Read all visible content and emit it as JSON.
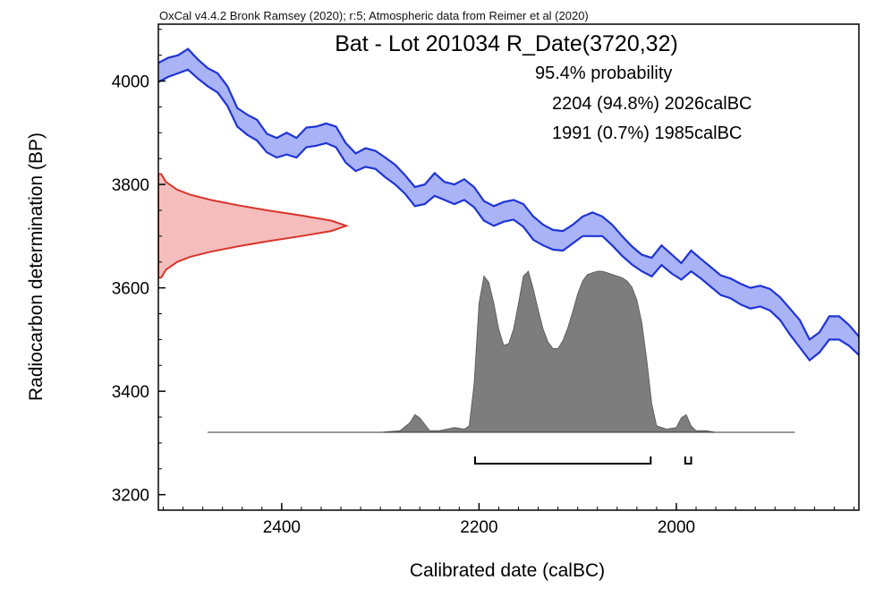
{
  "chart_data": {
    "type": "area",
    "header": "OxCal v4.4.2 Bronk Ramsey (2020); r:5; Atmospheric data from Reimer et al (2020)",
    "title": "Bat - Lot 201034 R_Date(3720,32)",
    "probability_label": "95.4% probability",
    "ranges": [
      {
        "text": "2204 (94.8%) 2026calBC",
        "from": 2204,
        "to": 2026
      },
      {
        "text": "1991 (0.7%) 1985calBC",
        "from": 1991,
        "to": 1985
      }
    ],
    "xlabel": "Calibrated date (calBC)",
    "ylabel": "Radiocarbon determination (BP)",
    "xlim": [
      2525,
      1815
    ],
    "ylim": [
      3170,
      4110
    ],
    "x_ticks": [
      2400,
      2200,
      2000
    ],
    "y_ticks": [
      3200,
      3400,
      3600,
      3800,
      4000
    ],
    "colors": {
      "curve_fill": "#a9b3f5",
      "curve_line": "#1f34d6",
      "radiocarbon_fill": "#f6bdbd",
      "radiocarbon_line": "#d9342a",
      "posterior_fill": "#7d7d7d"
    },
    "calibration_curve": {
      "x": [
        2525,
        2515,
        2505,
        2495,
        2485,
        2475,
        2465,
        2455,
        2445,
        2435,
        2425,
        2415,
        2405,
        2395,
        2385,
        2375,
        2365,
        2355,
        2345,
        2335,
        2325,
        2315,
        2305,
        2295,
        2285,
        2275,
        2265,
        2255,
        2245,
        2235,
        2225,
        2215,
        2205,
        2195,
        2185,
        2175,
        2165,
        2155,
        2145,
        2135,
        2125,
        2115,
        2105,
        2095,
        2085,
        2075,
        2065,
        2055,
        2045,
        2035,
        2025,
        2015,
        2005,
        1995,
        1985,
        1975,
        1965,
        1955,
        1945,
        1935,
        1925,
        1915,
        1905,
        1895,
        1885,
        1875,
        1865,
        1855,
        1845,
        1835,
        1825,
        1815
      ],
      "upper": [
        4035,
        4045,
        4050,
        4062,
        4042,
        4025,
        4015,
        3990,
        3948,
        3935,
        3925,
        3898,
        3890,
        3900,
        3890,
        3910,
        3912,
        3918,
        3912,
        3880,
        3860,
        3870,
        3865,
        3852,
        3838,
        3818,
        3795,
        3800,
        3822,
        3805,
        3800,
        3810,
        3795,
        3768,
        3758,
        3766,
        3770,
        3762,
        3738,
        3722,
        3712,
        3710,
        3722,
        3738,
        3746,
        3738,
        3722,
        3700,
        3680,
        3664,
        3658,
        3682,
        3665,
        3648,
        3672,
        3656,
        3640,
        3624,
        3618,
        3608,
        3600,
        3604,
        3598,
        3582,
        3560,
        3538,
        3500,
        3514,
        3545,
        3545,
        3528,
        3506
      ],
      "lower": [
        3998,
        4008,
        4015,
        4022,
        4005,
        3990,
        3978,
        3952,
        3912,
        3896,
        3885,
        3862,
        3852,
        3858,
        3852,
        3872,
        3875,
        3880,
        3872,
        3842,
        3826,
        3834,
        3830,
        3814,
        3800,
        3782,
        3758,
        3762,
        3778,
        3770,
        3762,
        3770,
        3756,
        3730,
        3720,
        3728,
        3732,
        3718,
        3693,
        3682,
        3674,
        3672,
        3686,
        3700,
        3700,
        3700,
        3682,
        3662,
        3645,
        3632,
        3622,
        3644,
        3628,
        3616,
        3632,
        3618,
        3602,
        3586,
        3580,
        3568,
        3560,
        3564,
        3556,
        3538,
        3510,
        3485,
        3460,
        3475,
        3500,
        3500,
        3488,
        3470
      ]
    },
    "radiocarbon_distribution": {
      "mean": 3720,
      "error": 32,
      "y": [
        3820,
        3805,
        3790,
        3780,
        3770,
        3760,
        3750,
        3740,
        3730,
        3720,
        3710,
        3700,
        3690,
        3680,
        3670,
        3660,
        3650,
        3635,
        3620
      ],
      "density": [
        0.015,
        0.04,
        0.1,
        0.17,
        0.28,
        0.42,
        0.58,
        0.76,
        0.92,
        1.0,
        0.92,
        0.76,
        0.58,
        0.42,
        0.28,
        0.17,
        0.1,
        0.04,
        0.015
      ]
    },
    "posterior_distribution": {
      "x": [
        2475,
        2300,
        2280,
        2270,
        2265,
        2260,
        2250,
        2240,
        2225,
        2215,
        2210,
        2205,
        2200,
        2195,
        2190,
        2185,
        2180,
        2175,
        2170,
        2165,
        2160,
        2155,
        2150,
        2145,
        2140,
        2135,
        2130,
        2125,
        2120,
        2115,
        2110,
        2105,
        2100,
        2095,
        2090,
        2085,
        2080,
        2075,
        2070,
        2065,
        2060,
        2055,
        2050,
        2045,
        2040,
        2035,
        2030,
        2025,
        2020,
        2010,
        2000,
        1995,
        1990,
        1985,
        1980,
        1970,
        1960,
        1940,
        1880
      ],
      "density": [
        0,
        0,
        0.01,
        0.06,
        0.11,
        0.09,
        0.01,
        0.01,
        0.03,
        0.02,
        0.04,
        0.3,
        0.8,
        0.97,
        0.93,
        0.8,
        0.64,
        0.54,
        0.55,
        0.64,
        0.8,
        0.97,
        1.0,
        0.89,
        0.76,
        0.64,
        0.56,
        0.52,
        0.52,
        0.57,
        0.65,
        0.75,
        0.86,
        0.94,
        0.98,
        0.99,
        1.0,
        1.0,
        0.99,
        0.98,
        0.97,
        0.96,
        0.94,
        0.9,
        0.82,
        0.68,
        0.45,
        0.18,
        0.04,
        0.02,
        0.03,
        0.09,
        0.11,
        0.04,
        0.01,
        0.01,
        0,
        0,
        0
      ]
    }
  }
}
